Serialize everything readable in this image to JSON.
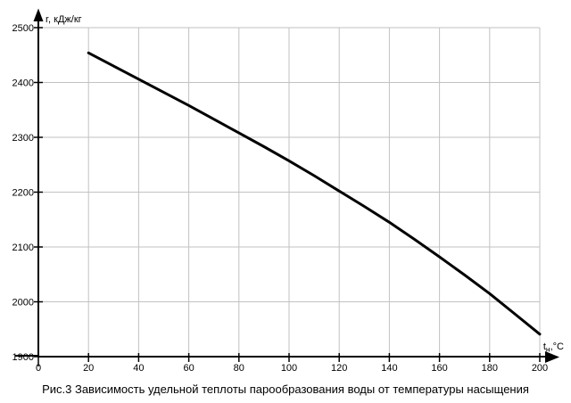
{
  "chart_data": {
    "type": "line",
    "title": "Рис.3 Зависимость удельной теплоты парообразования воды от температуры насыщения",
    "ylabel": "r, кДж/кг",
    "xlabel": {
      "base": "t",
      "sub": "н",
      "unit": ",°C"
    },
    "x": [
      20,
      30,
      40,
      50,
      60,
      70,
      80,
      90,
      100,
      110,
      120,
      130,
      140,
      150,
      160,
      170,
      180,
      190,
      200
    ],
    "values": [
      2454,
      2430,
      2406,
      2382,
      2358,
      2333,
      2308,
      2283,
      2257,
      2230,
      2202,
      2174,
      2145,
      2114,
      2082,
      2049,
      2015,
      1978,
      1941
    ],
    "xlim": [
      0,
      200
    ],
    "ylim": [
      1900,
      2500
    ],
    "x_ticks": [
      0,
      20,
      40,
      60,
      80,
      100,
      120,
      140,
      160,
      180,
      200
    ],
    "y_ticks": [
      1900,
      2000,
      2100,
      2200,
      2300,
      2400,
      2500
    ],
    "grid": true,
    "legend": "none",
    "colors": {
      "line": "#000000",
      "grid": "#c2c2c2",
      "axis": "#000000",
      "background": "#ffffff",
      "text": "#000000"
    }
  }
}
